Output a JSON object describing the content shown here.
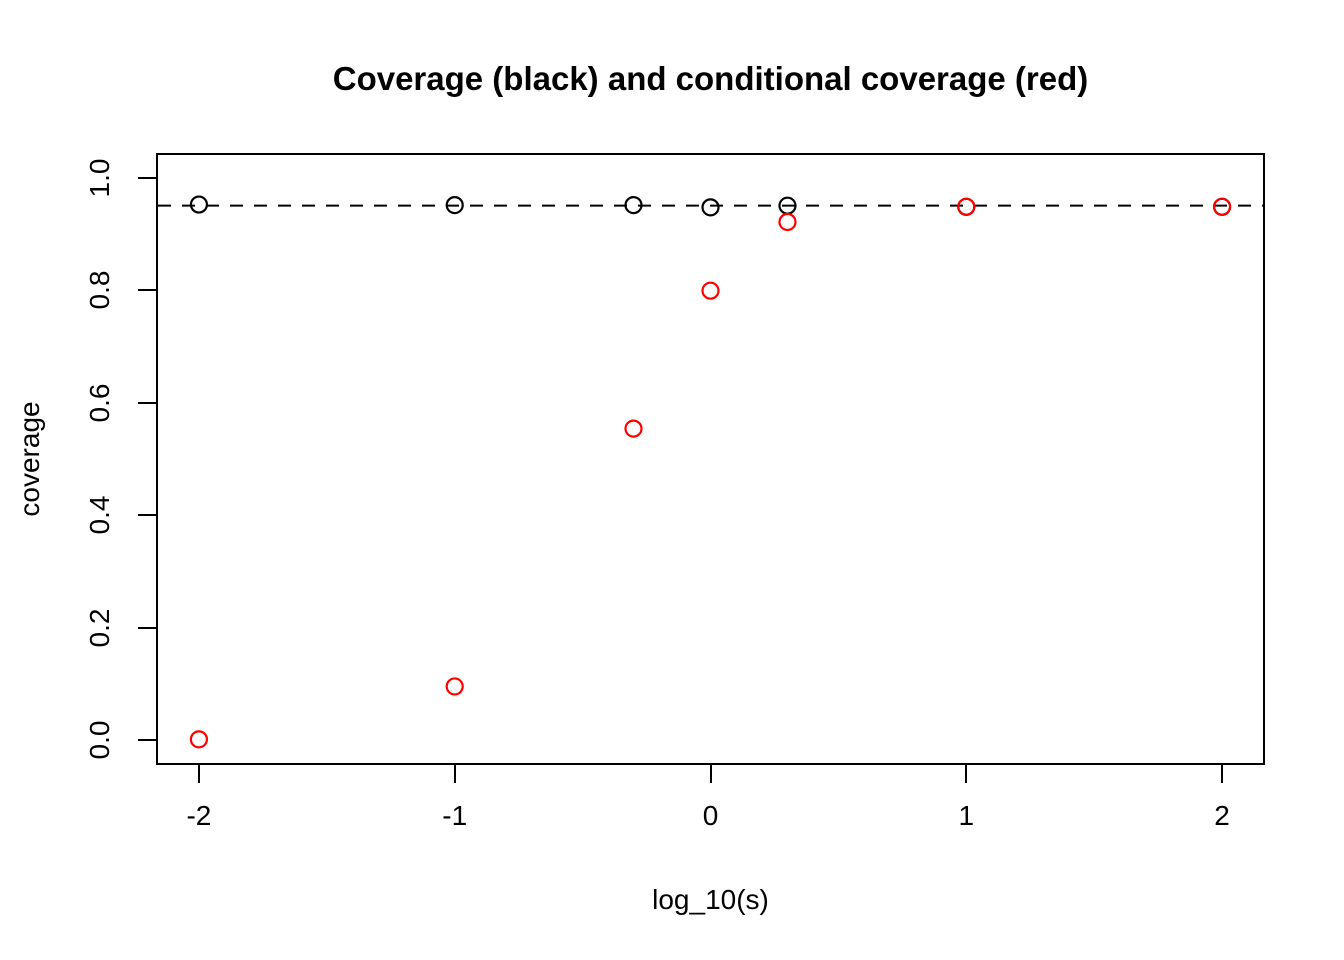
{
  "title": "Coverage (black) and conditional coverage (red)",
  "colors": {
    "background": "#FFFFFF",
    "foreground": "#000000",
    "red": "#FF0000"
  },
  "chart_data": {
    "type": "scatter",
    "title": "Coverage (black) and conditional coverage (red)",
    "xlabel": "log_10(s)",
    "ylabel": "coverage",
    "xlim": [
      -2.16,
      2.16
    ],
    "ylim": [
      -0.04,
      1.04
    ],
    "grid": false,
    "legend_position": "none",
    "x_ticks": [
      -2,
      -1,
      0,
      1,
      2
    ],
    "x_tick_labels": [
      "-2",
      "-1",
      "0",
      "1",
      "2"
    ],
    "y_ticks": [
      0.0,
      0.2,
      0.4,
      0.6,
      0.8,
      1.0
    ],
    "y_tick_labels": [
      "0.0",
      "0.2",
      "0.4",
      "0.6",
      "0.8",
      "1.0"
    ],
    "reference_line": {
      "y": 0.95,
      "style": "dashed",
      "color": "#000000"
    },
    "series": [
      {
        "name": "coverage",
        "color": "#000000",
        "marker": "open-circle",
        "x": [
          -2,
          -1,
          -0.301,
          0,
          0.301,
          1,
          2
        ],
        "y": [
          0.952,
          0.951,
          0.951,
          0.947,
          0.95,
          0.948,
          0.948
        ]
      },
      {
        "name": "conditional-coverage",
        "color": "#FF0000",
        "marker": "open-circle",
        "x": [
          -2,
          -1,
          -0.301,
          0,
          0.301,
          1,
          2
        ],
        "y": [
          0.002,
          0.096,
          0.554,
          0.799,
          0.921,
          0.948,
          0.948
        ]
      }
    ]
  }
}
